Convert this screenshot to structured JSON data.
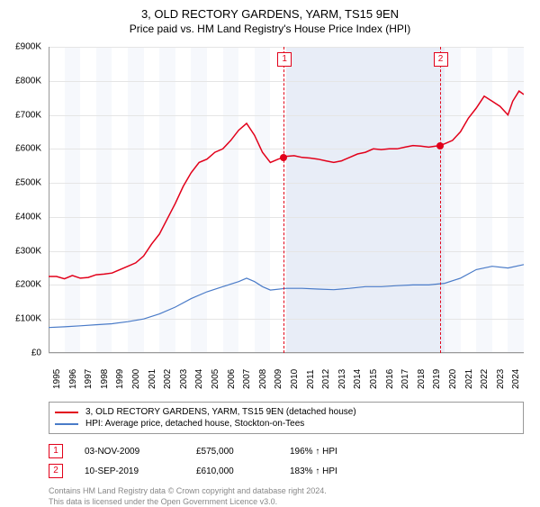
{
  "title": "3, OLD RECTORY GARDENS, YARM, TS15 9EN",
  "subtitle": "Price paid vs. HM Land Registry's House Price Index (HPI)",
  "chart": {
    "type": "line",
    "x_years": [
      1995,
      1996,
      1997,
      1998,
      1999,
      2000,
      2001,
      2002,
      2003,
      2004,
      2005,
      2006,
      2007,
      2008,
      2009,
      2010,
      2011,
      2012,
      2013,
      2014,
      2015,
      2016,
      2017,
      2018,
      2019,
      2020,
      2021,
      2022,
      2023,
      2024
    ],
    "xlim": [
      1995,
      2025
    ],
    "ylim": [
      0,
      900000
    ],
    "ytick_step": 100000,
    "y_labels": [
      "£0",
      "£100K",
      "£200K",
      "£300K",
      "£400K",
      "£500K",
      "£600K",
      "£700K",
      "£800K",
      "£900K"
    ],
    "background_color": "#ffffff",
    "grid_color": "#e5e5e5",
    "alt_band_color": "#eef2f9",
    "shaded_range": [
      2010,
      2020
    ],
    "shaded_color": "#e8edf7",
    "series": [
      {
        "name": "3, OLD RECTORY GARDENS, YARM, TS15 9EN (detached house)",
        "color": "#e2001a",
        "width": 1.5,
        "data": [
          [
            1995,
            225000
          ],
          [
            1995.5,
            225000
          ],
          [
            1996,
            218000
          ],
          [
            1996.5,
            228000
          ],
          [
            1997,
            220000
          ],
          [
            1997.5,
            222000
          ],
          [
            1998,
            230000
          ],
          [
            1998.5,
            232000
          ],
          [
            1999,
            235000
          ],
          [
            1999.5,
            245000
          ],
          [
            2000,
            255000
          ],
          [
            2000.5,
            265000
          ],
          [
            2001,
            285000
          ],
          [
            2001.5,
            320000
          ],
          [
            2002,
            350000
          ],
          [
            2002.5,
            395000
          ],
          [
            2003,
            440000
          ],
          [
            2003.5,
            490000
          ],
          [
            2004,
            530000
          ],
          [
            2004.5,
            560000
          ],
          [
            2005,
            570000
          ],
          [
            2005.5,
            590000
          ],
          [
            2006,
            600000
          ],
          [
            2006.5,
            625000
          ],
          [
            2007,
            655000
          ],
          [
            2007.5,
            675000
          ],
          [
            2008,
            640000
          ],
          [
            2008.5,
            590000
          ],
          [
            2009,
            560000
          ],
          [
            2009.5,
            570000
          ],
          [
            2009.84,
            575000
          ],
          [
            2010,
            578000
          ],
          [
            2010.5,
            580000
          ],
          [
            2011,
            575000
          ],
          [
            2011.5,
            573000
          ],
          [
            2012,
            570000
          ],
          [
            2012.5,
            565000
          ],
          [
            2013,
            560000
          ],
          [
            2013.5,
            565000
          ],
          [
            2014,
            575000
          ],
          [
            2014.5,
            585000
          ],
          [
            2015,
            590000
          ],
          [
            2015.5,
            600000
          ],
          [
            2016,
            598000
          ],
          [
            2016.5,
            600000
          ],
          [
            2017,
            600000
          ],
          [
            2017.5,
            605000
          ],
          [
            2018,
            610000
          ],
          [
            2018.5,
            608000
          ],
          [
            2019,
            605000
          ],
          [
            2019.69,
            610000
          ],
          [
            2020,
            615000
          ],
          [
            2020.5,
            625000
          ],
          [
            2021,
            650000
          ],
          [
            2021.5,
            690000
          ],
          [
            2022,
            720000
          ],
          [
            2022.5,
            755000
          ],
          [
            2023,
            740000
          ],
          [
            2023.5,
            725000
          ],
          [
            2024,
            700000
          ],
          [
            2024.3,
            740000
          ],
          [
            2024.7,
            770000
          ],
          [
            2025,
            760000
          ]
        ]
      },
      {
        "name": "HPI: Average price, detached house, Stockton-on-Tees",
        "color": "#4a7bc8",
        "width": 1.2,
        "data": [
          [
            1995,
            75000
          ],
          [
            1996,
            77000
          ],
          [
            1997,
            80000
          ],
          [
            1998,
            83000
          ],
          [
            1999,
            86000
          ],
          [
            2000,
            92000
          ],
          [
            2001,
            100000
          ],
          [
            2002,
            115000
          ],
          [
            2003,
            135000
          ],
          [
            2004,
            160000
          ],
          [
            2005,
            180000
          ],
          [
            2006,
            195000
          ],
          [
            2007,
            210000
          ],
          [
            2007.5,
            220000
          ],
          [
            2008,
            210000
          ],
          [
            2008.5,
            195000
          ],
          [
            2009,
            185000
          ],
          [
            2010,
            190000
          ],
          [
            2011,
            190000
          ],
          [
            2012,
            188000
          ],
          [
            2013,
            186000
          ],
          [
            2014,
            190000
          ],
          [
            2015,
            195000
          ],
          [
            2016,
            195000
          ],
          [
            2017,
            198000
          ],
          [
            2018,
            200000
          ],
          [
            2019,
            200000
          ],
          [
            2020,
            205000
          ],
          [
            2021,
            220000
          ],
          [
            2022,
            245000
          ],
          [
            2023,
            255000
          ],
          [
            2024,
            250000
          ],
          [
            2025,
            260000
          ]
        ]
      }
    ],
    "markers": [
      {
        "label": "1",
        "x": 2009.84,
        "y": 575000,
        "color": "#e2001a"
      },
      {
        "label": "2",
        "x": 2019.69,
        "y": 610000,
        "color": "#e2001a"
      }
    ]
  },
  "legend": {
    "series1": "3, OLD RECTORY GARDENS, YARM, TS15 9EN (detached house)",
    "series2": "HPI: Average price, detached house, Stockton-on-Tees"
  },
  "sales": [
    {
      "label": "1",
      "date": "03-NOV-2009",
      "price": "£575,000",
      "ratio": "196% ↑ HPI",
      "color": "#e2001a"
    },
    {
      "label": "2",
      "date": "10-SEP-2019",
      "price": "£610,000",
      "ratio": "183% ↑ HPI",
      "color": "#e2001a"
    }
  ],
  "footer": {
    "line1": "Contains HM Land Registry data © Crown copyright and database right 2024.",
    "line2": "This data is licensed under the Open Government Licence v3.0."
  }
}
